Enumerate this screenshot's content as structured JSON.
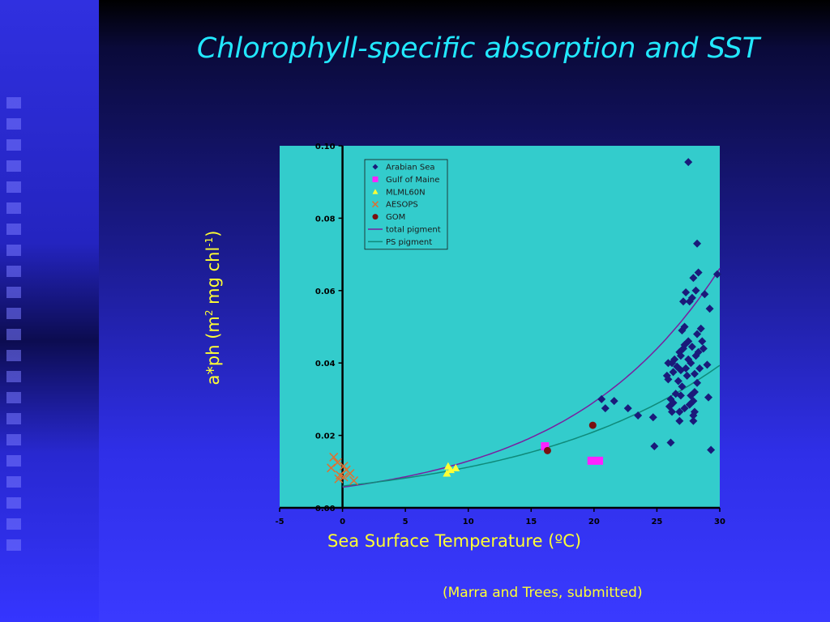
{
  "slide": {
    "title": "Chlorophyll-specific absorption and SST",
    "citation": "(Marra and Trees, submitted)"
  },
  "colors": {
    "plot_bg": "#33cccc",
    "title": "#22e8ff",
    "labels": "#ffff33",
    "arabian_sea": "#1a1a7a",
    "gulf_of_maine": "#ff22ff",
    "mlml60n": "#ffff33",
    "aesops": "#e07030",
    "gom": "#7a1010",
    "total_pigment": "#7a1fa0",
    "ps_pigment": "#0f8a7a"
  },
  "chart_data": {
    "type": "scatter",
    "xlabel": "Sea Surface Temperature  (ºC)",
    "ylabel_parts": [
      "a*ph (m",
      "2",
      " mg chl",
      "-1",
      ")"
    ],
    "xlim": [
      -5,
      30
    ],
    "ylim": [
      0,
      0.1
    ],
    "x_ticks": [
      "-5",
      "0",
      "5",
      "10",
      "15",
      "20",
      "25",
      "30"
    ],
    "y_ticks": [
      "0.00",
      "0.02",
      "0.04",
      "0.06",
      "0.08",
      "0.10"
    ],
    "legend_position": "top-left",
    "series": [
      {
        "name": "Arabian Sea",
        "marker": "diamond",
        "points": [
          [
            27.5,
            0.0955
          ],
          [
            28.2,
            0.073
          ],
          [
            28.3,
            0.065
          ],
          [
            29.8,
            0.0645
          ],
          [
            27.9,
            0.0635
          ],
          [
            27.3,
            0.0595
          ],
          [
            27.8,
            0.058
          ],
          [
            28.1,
            0.06
          ],
          [
            28.8,
            0.059
          ],
          [
            27.6,
            0.057
          ],
          [
            27.1,
            0.057
          ],
          [
            29.2,
            0.055
          ],
          [
            27.2,
            0.05
          ],
          [
            27.0,
            0.049
          ],
          [
            28.5,
            0.0495
          ],
          [
            28.2,
            0.048
          ],
          [
            27.5,
            0.046
          ],
          [
            27.2,
            0.045
          ],
          [
            28.6,
            0.046
          ],
          [
            27.8,
            0.0445
          ],
          [
            27.1,
            0.044
          ],
          [
            26.8,
            0.043
          ],
          [
            28.3,
            0.043
          ],
          [
            28.7,
            0.044
          ],
          [
            26.9,
            0.042
          ],
          [
            28.1,
            0.042
          ],
          [
            27.5,
            0.041
          ],
          [
            26.4,
            0.041
          ],
          [
            25.9,
            0.04
          ],
          [
            26.2,
            0.04
          ],
          [
            27.7,
            0.04
          ],
          [
            29.0,
            0.0395
          ],
          [
            26.6,
            0.039
          ],
          [
            27.3,
            0.0385
          ],
          [
            28.4,
            0.0385
          ],
          [
            26.9,
            0.038
          ],
          [
            26.3,
            0.0375
          ],
          [
            28.0,
            0.037
          ],
          [
            25.8,
            0.0365
          ],
          [
            27.4,
            0.0365
          ],
          [
            25.9,
            0.0355
          ],
          [
            26.7,
            0.035
          ],
          [
            28.2,
            0.0345
          ],
          [
            27.0,
            0.0335
          ],
          [
            28.0,
            0.032
          ],
          [
            26.5,
            0.0315
          ],
          [
            26.9,
            0.031
          ],
          [
            27.7,
            0.031
          ],
          [
            29.1,
            0.0305
          ],
          [
            26.1,
            0.03
          ],
          [
            27.9,
            0.0295
          ],
          [
            26.3,
            0.029
          ],
          [
            27.6,
            0.0285
          ],
          [
            26.0,
            0.028
          ],
          [
            27.2,
            0.0275
          ],
          [
            28.0,
            0.0265
          ],
          [
            26.2,
            0.0265
          ],
          [
            26.8,
            0.0265
          ],
          [
            27.9,
            0.0255
          ],
          [
            26.8,
            0.024
          ],
          [
            27.9,
            0.024
          ],
          [
            20.6,
            0.03
          ],
          [
            21.6,
            0.0295
          ],
          [
            20.9,
            0.0275
          ],
          [
            22.7,
            0.0275
          ],
          [
            23.5,
            0.0255
          ],
          [
            24.7,
            0.025
          ],
          [
            26.1,
            0.018
          ],
          [
            24.8,
            0.017
          ],
          [
            29.3,
            0.016
          ]
        ]
      },
      {
        "name": "Gulf of Maine",
        "marker": "square",
        "points": [
          [
            16.1,
            0.017
          ],
          [
            19.8,
            0.013
          ],
          [
            20.4,
            0.013
          ]
        ]
      },
      {
        "name": "MLML60N",
        "marker": "triangle",
        "points": [
          [
            8.4,
            0.0115
          ],
          [
            9.0,
            0.011
          ],
          [
            8.6,
            0.0105
          ],
          [
            8.3,
            0.0095
          ]
        ]
      },
      {
        "name": "AESOPS",
        "marker": "x",
        "points": [
          [
            -0.7,
            0.014
          ],
          [
            -0.4,
            0.0125
          ],
          [
            0.1,
            0.0115
          ],
          [
            0.3,
            0.0105
          ],
          [
            -0.9,
            0.011
          ],
          [
            0.6,
            0.0095
          ],
          [
            -0.2,
            0.009
          ],
          [
            0.1,
            0.0085
          ],
          [
            0.9,
            0.0075
          ],
          [
            -0.3,
            0.008
          ]
        ]
      },
      {
        "name": "GOM",
        "marker": "circle",
        "points": [
          [
            16.3,
            0.0158
          ],
          [
            19.9,
            0.0228
          ]
        ]
      },
      {
        "name": "total pigment",
        "marker": "line",
        "curve": {
          "a": 0.0057,
          "b": 0.0817
        }
      },
      {
        "name": "PS pigment",
        "marker": "line",
        "curve": {
          "a": 0.006,
          "b": 0.0627
        }
      }
    ]
  }
}
